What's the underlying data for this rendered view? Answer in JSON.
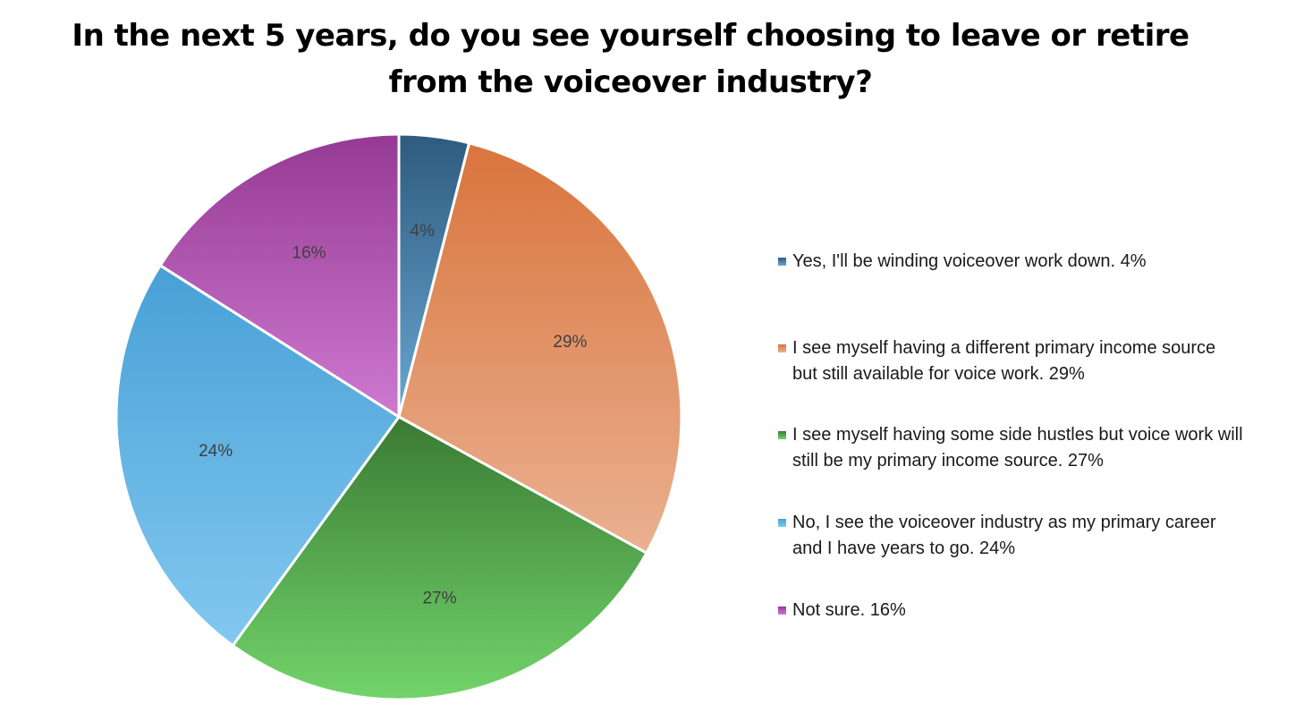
{
  "chart_data": {
    "type": "pie",
    "title": "In the next 5 years, do you see yourself choosing to leave or retire from the voiceover industry?",
    "start_angle_deg": 0,
    "direction": "clockwise",
    "legend_position": "right",
    "slices": [
      {
        "key": "winding-down",
        "value": 4,
        "data_label": "4%",
        "legend_label": "Yes, I'll be winding voiceover work down. 4%",
        "color_top": "#2e5b7e",
        "color_bottom": "#6aa6d3"
      },
      {
        "key": "different-primary-income",
        "value": 29,
        "data_label": "29%",
        "legend_label": "I see myself having a different primary income source\nbut still available for voice work. 29%",
        "color_top": "#d9743c",
        "color_bottom": "#eab191"
      },
      {
        "key": "side-hustles",
        "value": 27,
        "data_label": "27%",
        "legend_label": "I see myself having some side hustles but voice work will\nstill be my primary income source. 27%",
        "color_top": "#3a7a33",
        "color_bottom": "#72d46a"
      },
      {
        "key": "primary-career",
        "value": 24,
        "data_label": "24%",
        "legend_label": "No, I see the voiceover industry as my primary career\nand I have years to go. 24%",
        "color_top": "#48a0d6",
        "color_bottom": "#82c8f0"
      },
      {
        "key": "not-sure",
        "value": 16,
        "data_label": "16%",
        "legend_label": "Not sure. 16%",
        "color_top": "#953a93",
        "color_bottom": "#ce79d0"
      }
    ]
  }
}
